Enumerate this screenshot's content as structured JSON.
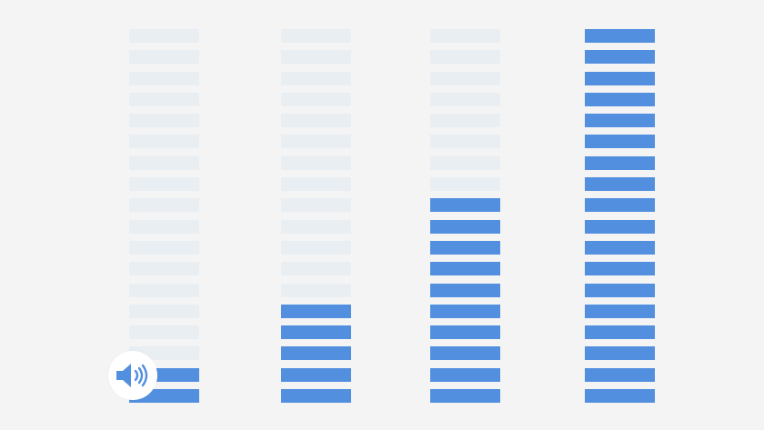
{
  "colors": {
    "background": "#f4f4f4",
    "segment_active": "#528fdf",
    "segment_inactive": "#e9eef3",
    "icon": "#528fdf",
    "icon_bg": "#ffffff"
  },
  "segments_per_column": 18,
  "meters": [
    {
      "active_segments": 2
    },
    {
      "active_segments": 5
    },
    {
      "active_segments": 10
    },
    {
      "active_segments": 18
    }
  ],
  "icons": {
    "speaker": "speaker-volume-icon"
  }
}
